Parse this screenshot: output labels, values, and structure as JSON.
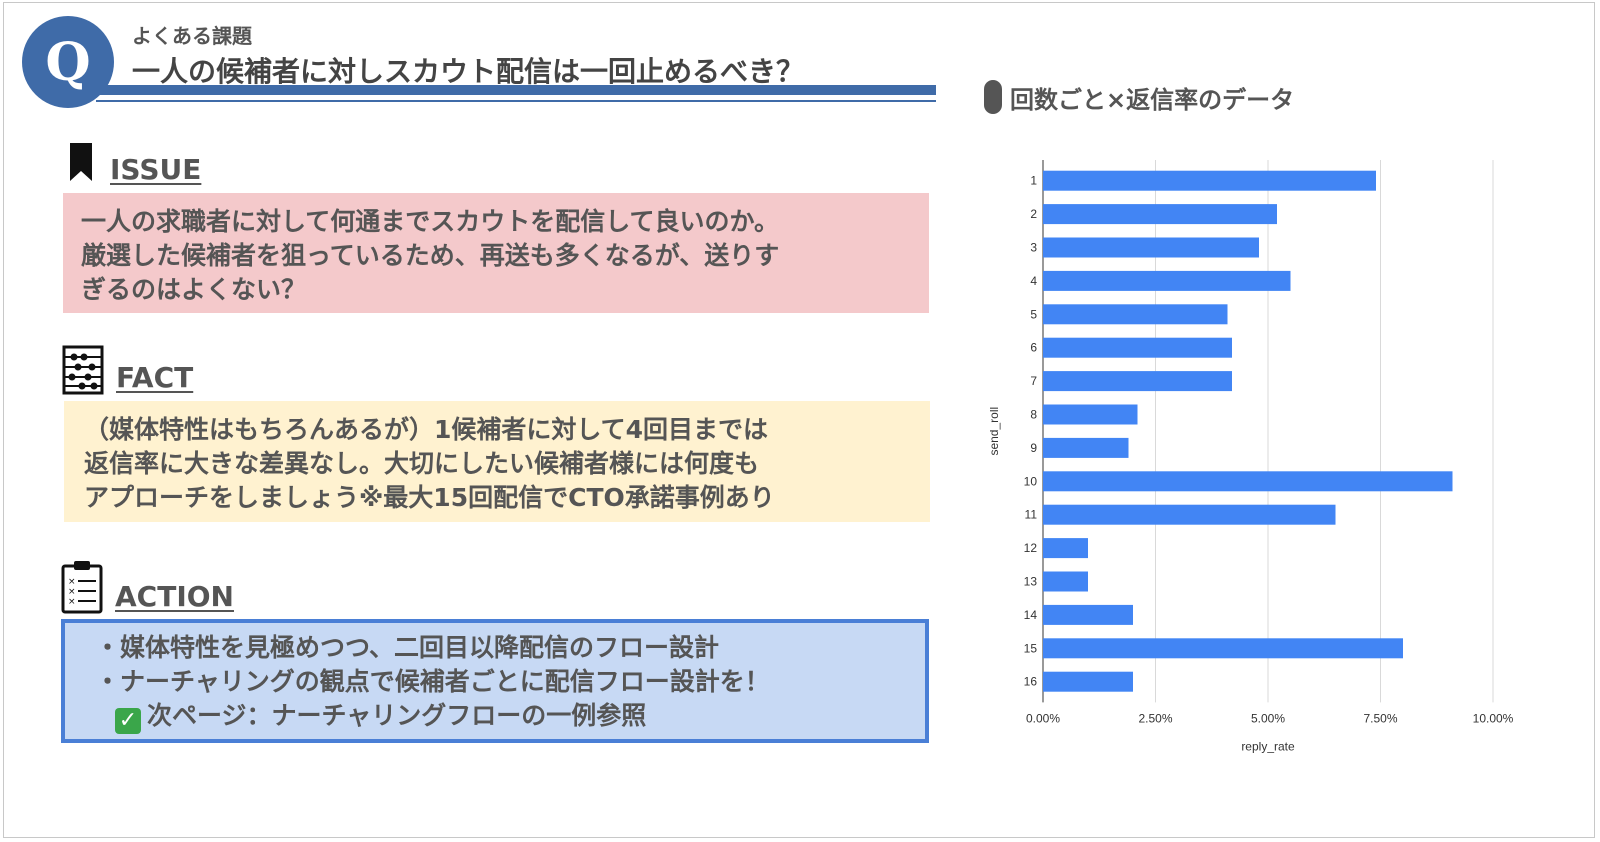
{
  "header": {
    "badge": "Q",
    "kicker": "よくある課題",
    "title": "一人の候補者に対しスカウト配信は一回止めるべき？"
  },
  "issue": {
    "label": "ISSUE",
    "icon": "bookmark-icon",
    "lines": [
      "一人の求職者に対して何通までスカウトを配信して良いのか。",
      "厳選した候補者を狙っているため、再送も多くなるが、送りす",
      "ぎるのはよくない？"
    ],
    "bg": "#f4c9cb"
  },
  "fact": {
    "label": "FACT",
    "icon": "abacus-icon",
    "lines": [
      "（媒体特性はもちろんあるが）1候補者に対して4回目までは",
      "返信率に大きな差異なし。大切にしたい候補者様には何度も",
      "アプローチをしましょう※最大15回配信でCTO承諾事例あり"
    ],
    "bg": "#fff2d0"
  },
  "action": {
    "label": "ACTION",
    "icon": "clipboard-checklist-icon",
    "lines": [
      "・媒体特性を見極めつつ、二回目以降配信のフロー設計",
      "・ナーチャリングの観点で候補者ごとに配信フロー設計を！"
    ],
    "check_icon": "check-mark-icon",
    "next": "次ページ：ナーチャリングフローの一例参照",
    "bg": "#c7d9f4",
    "border": "#4a7fd6"
  },
  "chart_title": "回数ごと×返信率のデータ",
  "chart_data": {
    "type": "bar",
    "orientation": "horizontal",
    "categories": [
      "1",
      "2",
      "3",
      "4",
      "5",
      "6",
      "7",
      "8",
      "9",
      "10",
      "11",
      "12",
      "13",
      "14",
      "15",
      "16"
    ],
    "values": [
      0.074,
      0.052,
      0.048,
      0.055,
      0.041,
      0.042,
      0.042,
      0.021,
      0.019,
      0.091,
      0.065,
      0.01,
      0.01,
      0.02,
      0.08,
      0.02
    ],
    "xlabel": "reply_rate",
    "ylabel": "send_roll",
    "xlim": [
      0,
      0.1
    ],
    "xticks": [
      "0.00%",
      "2.50%",
      "5.00%",
      "7.50%",
      "10.00%"
    ],
    "grid": true,
    "bar_color": "#4285f4"
  }
}
